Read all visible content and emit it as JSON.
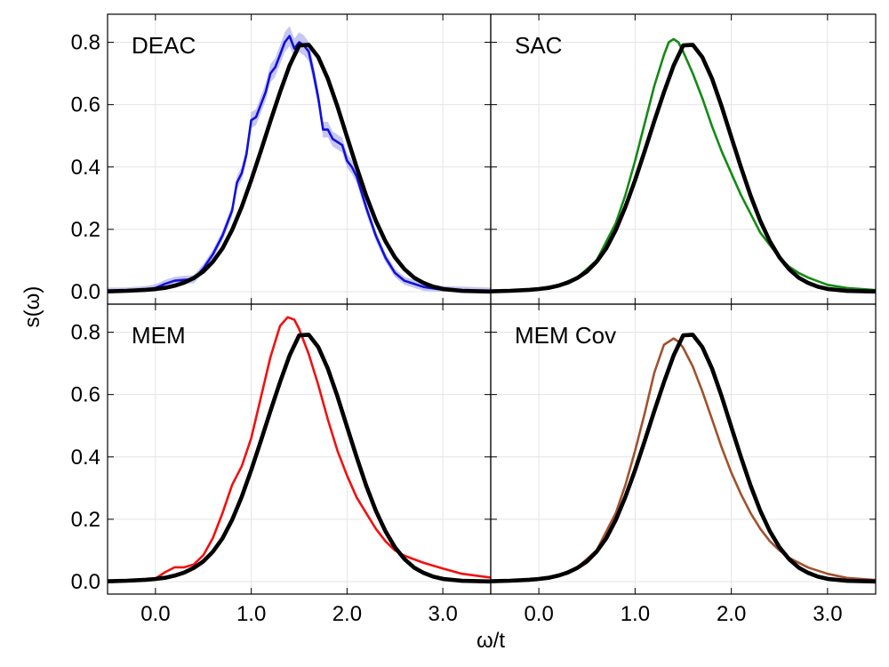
{
  "chart_data": {
    "type": "line",
    "layout": "2x2 panels sharing axes",
    "xlabel": "ω/t",
    "ylabel": "s(ω)",
    "xlim": [
      -0.5,
      3.5
    ],
    "ylim": [
      -0.04,
      0.89
    ],
    "x_ticks": [
      0.0,
      1.0,
      2.0,
      3.0
    ],
    "x_tick_labels": [
      "0.0",
      "1.0",
      "2.0",
      "3.0"
    ],
    "y_ticks": [
      0.0,
      0.2,
      0.4,
      0.6,
      0.8
    ],
    "y_tick_labels": [
      "0.0",
      "0.2",
      "0.4",
      "0.6",
      "0.8"
    ],
    "grid": true,
    "reference": {
      "color": "#000000",
      "points": [
        [
          -0.5,
          0.0012
        ],
        [
          -0.3,
          0.0027
        ],
        [
          -0.1,
          0.0058
        ],
        [
          0.0,
          0.0085
        ],
        [
          0.1,
          0.0121
        ],
        [
          0.2,
          0.0191
        ],
        [
          0.3,
          0.0289
        ],
        [
          0.4,
          0.044
        ],
        [
          0.5,
          0.065
        ],
        [
          0.6,
          0.096
        ],
        [
          0.7,
          0.139
        ],
        [
          0.8,
          0.198
        ],
        [
          0.9,
          0.272
        ],
        [
          1.0,
          0.358
        ],
        [
          1.1,
          0.451
        ],
        [
          1.2,
          0.547
        ],
        [
          1.3,
          0.64
        ],
        [
          1.4,
          0.725
        ],
        [
          1.5,
          0.79
        ],
        [
          1.6,
          0.792
        ],
        [
          1.7,
          0.752
        ],
        [
          1.8,
          0.683
        ],
        [
          1.9,
          0.594
        ],
        [
          2.0,
          0.496
        ],
        [
          2.1,
          0.399
        ],
        [
          2.2,
          0.308
        ],
        [
          2.3,
          0.228
        ],
        [
          2.4,
          0.162
        ],
        [
          2.5,
          0.11
        ],
        [
          2.6,
          0.072
        ],
        [
          2.7,
          0.045
        ],
        [
          2.8,
          0.028
        ],
        [
          2.9,
          0.016
        ],
        [
          3.0,
          0.0088
        ],
        [
          3.2,
          0.0024
        ],
        [
          3.5,
          0.0005
        ]
      ]
    },
    "panels": [
      {
        "label": "DEAC",
        "color": "#1010d8",
        "band_color": "#a0a0ee",
        "points": [
          [
            -0.5,
            0.001
          ],
          [
            -0.3,
            0.002
          ],
          [
            -0.1,
            0.006
          ],
          [
            0.0,
            0.012
          ],
          [
            0.1,
            0.025
          ],
          [
            0.2,
            0.035
          ],
          [
            0.3,
            0.038
          ],
          [
            0.4,
            0.04
          ],
          [
            0.5,
            0.075
          ],
          [
            0.6,
            0.12
          ],
          [
            0.7,
            0.18
          ],
          [
            0.8,
            0.26
          ],
          [
            0.85,
            0.35
          ],
          [
            0.9,
            0.38
          ],
          [
            0.95,
            0.44
          ],
          [
            1.0,
            0.55
          ],
          [
            1.05,
            0.56
          ],
          [
            1.1,
            0.6
          ],
          [
            1.15,
            0.64
          ],
          [
            1.2,
            0.7
          ],
          [
            1.25,
            0.72
          ],
          [
            1.3,
            0.76
          ],
          [
            1.35,
            0.8
          ],
          [
            1.4,
            0.82
          ],
          [
            1.45,
            0.78
          ],
          [
            1.5,
            0.8
          ],
          [
            1.55,
            0.79
          ],
          [
            1.6,
            0.77
          ],
          [
            1.65,
            0.7
          ],
          [
            1.7,
            0.62
          ],
          [
            1.75,
            0.52
          ],
          [
            1.8,
            0.52
          ],
          [
            1.85,
            0.49
          ],
          [
            1.9,
            0.48
          ],
          [
            1.95,
            0.47
          ],
          [
            2.0,
            0.42
          ],
          [
            2.05,
            0.4
          ],
          [
            2.1,
            0.37
          ],
          [
            2.2,
            0.27
          ],
          [
            2.3,
            0.18
          ],
          [
            2.4,
            0.11
          ],
          [
            2.5,
            0.06
          ],
          [
            2.6,
            0.035
          ],
          [
            2.7,
            0.025
          ],
          [
            2.8,
            0.015
          ],
          [
            3.0,
            0.006
          ],
          [
            3.5,
            0.001
          ]
        ]
      },
      {
        "label": "SAC",
        "color": "#138a13",
        "points": [
          [
            -0.5,
            0.002
          ],
          [
            -0.2,
            0.005
          ],
          [
            0.0,
            0.01
          ],
          [
            0.2,
            0.021
          ],
          [
            0.4,
            0.045
          ],
          [
            0.6,
            0.1
          ],
          [
            0.8,
            0.22
          ],
          [
            0.9,
            0.31
          ],
          [
            1.0,
            0.42
          ],
          [
            1.1,
            0.54
          ],
          [
            1.2,
            0.66
          ],
          [
            1.3,
            0.76
          ],
          [
            1.35,
            0.8
          ],
          [
            1.4,
            0.81
          ],
          [
            1.45,
            0.8
          ],
          [
            1.5,
            0.77
          ],
          [
            1.6,
            0.7
          ],
          [
            1.7,
            0.62
          ],
          [
            1.8,
            0.53
          ],
          [
            1.9,
            0.45
          ],
          [
            2.0,
            0.38
          ],
          [
            2.1,
            0.31
          ],
          [
            2.2,
            0.25
          ],
          [
            2.3,
            0.19
          ],
          [
            2.4,
            0.15
          ],
          [
            2.5,
            0.11
          ],
          [
            2.6,
            0.08
          ],
          [
            2.7,
            0.06
          ],
          [
            2.8,
            0.045
          ],
          [
            3.0,
            0.022
          ],
          [
            3.2,
            0.012
          ],
          [
            3.5,
            0.005
          ]
        ]
      },
      {
        "label": "MEM",
        "color": "#f01010",
        "points": [
          [
            -0.5,
            0.003
          ],
          [
            -0.2,
            0.005
          ],
          [
            0.0,
            0.01
          ],
          [
            0.1,
            0.03
          ],
          [
            0.2,
            0.046
          ],
          [
            0.3,
            0.046
          ],
          [
            0.4,
            0.055
          ],
          [
            0.5,
            0.085
          ],
          [
            0.6,
            0.14
          ],
          [
            0.7,
            0.22
          ],
          [
            0.8,
            0.31
          ],
          [
            0.9,
            0.37
          ],
          [
            1.0,
            0.46
          ],
          [
            1.1,
            0.59
          ],
          [
            1.2,
            0.72
          ],
          [
            1.3,
            0.82
          ],
          [
            1.38,
            0.848
          ],
          [
            1.45,
            0.84
          ],
          [
            1.5,
            0.81
          ],
          [
            1.6,
            0.73
          ],
          [
            1.7,
            0.63
          ],
          [
            1.8,
            0.52
          ],
          [
            1.9,
            0.42
          ],
          [
            2.0,
            0.34
          ],
          [
            2.1,
            0.27
          ],
          [
            2.2,
            0.22
          ],
          [
            2.3,
            0.17
          ],
          [
            2.4,
            0.13
          ],
          [
            2.5,
            0.1
          ],
          [
            2.6,
            0.083
          ],
          [
            2.8,
            0.06
          ],
          [
            3.0,
            0.042
          ],
          [
            3.2,
            0.025
          ],
          [
            3.5,
            0.013
          ]
        ]
      },
      {
        "label": "MEM Cov",
        "color": "#a0522d",
        "points": [
          [
            -0.5,
            0.003
          ],
          [
            -0.2,
            0.005
          ],
          [
            0.0,
            0.01
          ],
          [
            0.2,
            0.02
          ],
          [
            0.4,
            0.045
          ],
          [
            0.6,
            0.1
          ],
          [
            0.8,
            0.22
          ],
          [
            0.9,
            0.31
          ],
          [
            1.0,
            0.42
          ],
          [
            1.1,
            0.54
          ],
          [
            1.2,
            0.67
          ],
          [
            1.3,
            0.76
          ],
          [
            1.4,
            0.78
          ],
          [
            1.45,
            0.77
          ],
          [
            1.5,
            0.75
          ],
          [
            1.6,
            0.69
          ],
          [
            1.7,
            0.61
          ],
          [
            1.8,
            0.52
          ],
          [
            1.9,
            0.43
          ],
          [
            2.0,
            0.35
          ],
          [
            2.1,
            0.28
          ],
          [
            2.2,
            0.22
          ],
          [
            2.3,
            0.17
          ],
          [
            2.4,
            0.13
          ],
          [
            2.5,
            0.1
          ],
          [
            2.6,
            0.076
          ],
          [
            2.8,
            0.045
          ],
          [
            3.0,
            0.025
          ],
          [
            3.2,
            0.012
          ],
          [
            3.5,
            0.005
          ]
        ]
      }
    ]
  }
}
